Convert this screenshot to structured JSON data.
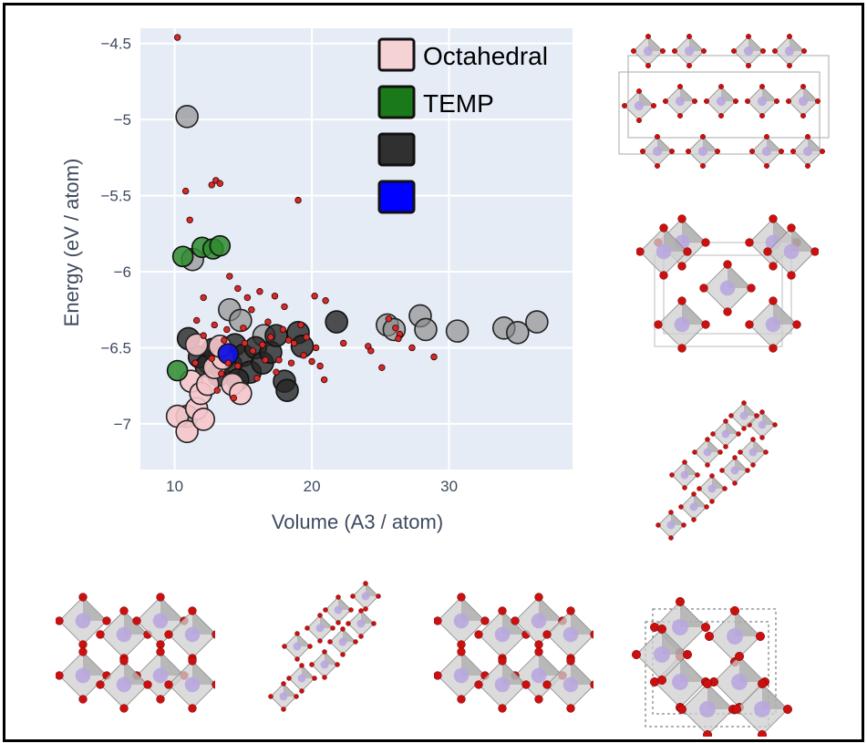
{
  "chart_data": {
    "type": "scatter",
    "xlabel": "Volume (A3 / atom)",
    "ylabel": "Energy (eV / atom)",
    "xlim": [
      7.5,
      39
    ],
    "ylim": [
      -7.3,
      -4.4
    ],
    "x_ticks": [
      10,
      20,
      30
    ],
    "y_ticks": [
      -4.5,
      -5,
      -5.5,
      -6,
      -6.5,
      -7
    ],
    "x_tick_labels": [
      "10",
      "20",
      "30"
    ],
    "y_tick_labels": [
      "−4.5",
      "−5",
      "−5.5",
      "−6",
      "−6.5",
      "−7"
    ],
    "grid": true,
    "legend_position": "top-right",
    "legend": [
      {
        "label": "Octahedral",
        "color": "#f5d3d5"
      },
      {
        "label": "TEMP",
        "color": "#1a7a1a"
      },
      {
        "label": "",
        "color": "#303030"
      },
      {
        "label": "",
        "color": "#0000ff"
      }
    ],
    "series": [
      {
        "group": "gray-large",
        "color": "#8a8a8a",
        "points": [
          {
            "x": 10.9,
            "y": -4.98
          },
          {
            "x": 11.3,
            "y": -5.92
          },
          {
            "x": 14.0,
            "y": -6.25
          },
          {
            "x": 14.8,
            "y": -6.32
          },
          {
            "x": 16.5,
            "y": -6.42
          },
          {
            "x": 25.5,
            "y": -6.35
          },
          {
            "x": 26.0,
            "y": -6.38
          },
          {
            "x": 27.9,
            "y": -6.29
          },
          {
            "x": 28.3,
            "y": -6.38
          },
          {
            "x": 30.6,
            "y": -6.39
          },
          {
            "x": 34.0,
            "y": -6.37
          },
          {
            "x": 35.0,
            "y": -6.4
          },
          {
            "x": 36.4,
            "y": -6.33
          },
          {
            "x": 10.9,
            "y": -6.95
          },
          {
            "x": 12.5,
            "y": -6.6
          }
        ]
      },
      {
        "group": "black-large",
        "color": "#252525",
        "points": [
          {
            "x": 11.0,
            "y": -6.44
          },
          {
            "x": 11.8,
            "y": -6.56
          },
          {
            "x": 12.3,
            "y": -6.62
          },
          {
            "x": 12.8,
            "y": -6.51
          },
          {
            "x": 13.2,
            "y": -6.68
          },
          {
            "x": 13.6,
            "y": -6.57
          },
          {
            "x": 14.1,
            "y": -6.61
          },
          {
            "x": 14.4,
            "y": -6.48
          },
          {
            "x": 15.0,
            "y": -6.55
          },
          {
            "x": 15.5,
            "y": -6.66
          },
          {
            "x": 15.9,
            "y": -6.5
          },
          {
            "x": 16.4,
            "y": -6.6
          },
          {
            "x": 17.0,
            "y": -6.53
          },
          {
            "x": 17.4,
            "y": -6.42
          },
          {
            "x": 18.0,
            "y": -6.72
          },
          {
            "x": 18.2,
            "y": -6.78
          },
          {
            "x": 19.0,
            "y": -6.4
          },
          {
            "x": 19.3,
            "y": -6.49
          },
          {
            "x": 21.8,
            "y": -6.33
          },
          {
            "x": 14.6,
            "y": -6.71
          }
        ]
      },
      {
        "group": "pink-octahedral",
        "color": "#f5c6cb",
        "points": [
          {
            "x": 10.2,
            "y": -6.95
          },
          {
            "x": 10.9,
            "y": -7.05
          },
          {
            "x": 11.6,
            "y": -6.9
          },
          {
            "x": 11.2,
            "y": -6.72
          },
          {
            "x": 11.9,
            "y": -6.8
          },
          {
            "x": 12.4,
            "y": -6.74
          },
          {
            "x": 12.9,
            "y": -6.63
          },
          {
            "x": 11.6,
            "y": -6.48
          },
          {
            "x": 13.5,
            "y": -6.57
          },
          {
            "x": 14.2,
            "y": -6.74
          },
          {
            "x": 14.8,
            "y": -6.8
          },
          {
            "x": 12.1,
            "y": -6.97
          },
          {
            "x": 13.3,
            "y": -6.49
          }
        ]
      },
      {
        "group": "green-temp",
        "color": "#2e8b2e",
        "points": [
          {
            "x": 10.6,
            "y": -5.9
          },
          {
            "x": 12.0,
            "y": -5.84
          },
          {
            "x": 12.8,
            "y": -5.85
          },
          {
            "x": 13.3,
            "y": -5.83
          },
          {
            "x": 10.2,
            "y": -6.65
          }
        ]
      },
      {
        "group": "blue",
        "color": "#1212e0",
        "points": [
          {
            "x": 13.9,
            "y": -6.54
          }
        ]
      },
      {
        "group": "red-small",
        "color": "#d42a2a",
        "points": [
          {
            "x": 10.2,
            "y": -4.46
          },
          {
            "x": 10.8,
            "y": -5.47
          },
          {
            "x": 11.1,
            "y": -5.66
          },
          {
            "x": 12.7,
            "y": -5.43
          },
          {
            "x": 13.0,
            "y": -5.4
          },
          {
            "x": 13.3,
            "y": -5.42
          },
          {
            "x": 19.0,
            "y": -5.53
          },
          {
            "x": 14.0,
            "y": -6.03
          },
          {
            "x": 14.6,
            "y": -6.11
          },
          {
            "x": 15.3,
            "y": -6.17
          },
          {
            "x": 16.2,
            "y": -6.13
          },
          {
            "x": 17.3,
            "y": -6.16
          },
          {
            "x": 18.0,
            "y": -6.23
          },
          {
            "x": 12.1,
            "y": -6.17
          },
          {
            "x": 11.6,
            "y": -6.32
          },
          {
            "x": 12.9,
            "y": -6.35
          },
          {
            "x": 13.8,
            "y": -6.38
          },
          {
            "x": 15.6,
            "y": -6.25
          },
          {
            "x": 16.8,
            "y": -6.33
          },
          {
            "x": 17.9,
            "y": -6.38
          },
          {
            "x": 18.7,
            "y": -6.47
          },
          {
            "x": 19.6,
            "y": -6.43
          },
          {
            "x": 20.3,
            "y": -6.5
          },
          {
            "x": 20.2,
            "y": -6.16
          },
          {
            "x": 21.0,
            "y": -6.19
          },
          {
            "x": 20.0,
            "y": -6.59
          },
          {
            "x": 20.6,
            "y": -6.62
          },
          {
            "x": 20.9,
            "y": -6.71
          },
          {
            "x": 22.3,
            "y": -6.47
          },
          {
            "x": 24.1,
            "y": -6.49
          },
          {
            "x": 24.3,
            "y": -6.52
          },
          {
            "x": 25.1,
            "y": -6.63
          },
          {
            "x": 25.6,
            "y": -6.31
          },
          {
            "x": 26.1,
            "y": -6.37
          },
          {
            "x": 26.4,
            "y": -6.41
          },
          {
            "x": 26.3,
            "y": -6.44
          },
          {
            "x": 27.3,
            "y": -6.5
          },
          {
            "x": 28.9,
            "y": -6.56
          },
          {
            "x": 17.6,
            "y": -6.58
          },
          {
            "x": 16.4,
            "y": -6.48
          },
          {
            "x": 15.1,
            "y": -6.47
          },
          {
            "x": 13.9,
            "y": -6.6
          },
          {
            "x": 12.7,
            "y": -6.57
          },
          {
            "x": 13.4,
            "y": -6.67
          },
          {
            "x": 14.6,
            "y": -6.62
          },
          {
            "x": 16.0,
            "y": -6.7
          },
          {
            "x": 17.4,
            "y": -6.66
          },
          {
            "x": 18.5,
            "y": -6.6
          },
          {
            "x": 19.4,
            "y": -6.55
          },
          {
            "x": 12.1,
            "y": -6.42
          },
          {
            "x": 13.1,
            "y": -6.78
          },
          {
            "x": 14.3,
            "y": -6.83
          },
          {
            "x": 15.7,
            "y": -6.52
          },
          {
            "x": 19.2,
            "y": -6.35
          },
          {
            "x": 18.3,
            "y": -6.45
          },
          {
            "x": 11.5,
            "y": -6.6
          },
          {
            "x": 15.0,
            "y": -6.37
          },
          {
            "x": 17.0,
            "y": -6.43
          },
          {
            "x": 13.6,
            "y": -6.45
          },
          {
            "x": 16.6,
            "y": -6.58
          }
        ]
      }
    ]
  },
  "structures": [
    {
      "name": "structure-layered"
    },
    {
      "name": "structure-cubic-cell"
    },
    {
      "name": "structure-diagonal-chain"
    },
    {
      "name": "structure-rutile-a"
    },
    {
      "name": "structure-diagonal-b"
    },
    {
      "name": "structure-rutile-b"
    },
    {
      "name": "structure-dashed-cell"
    }
  ]
}
